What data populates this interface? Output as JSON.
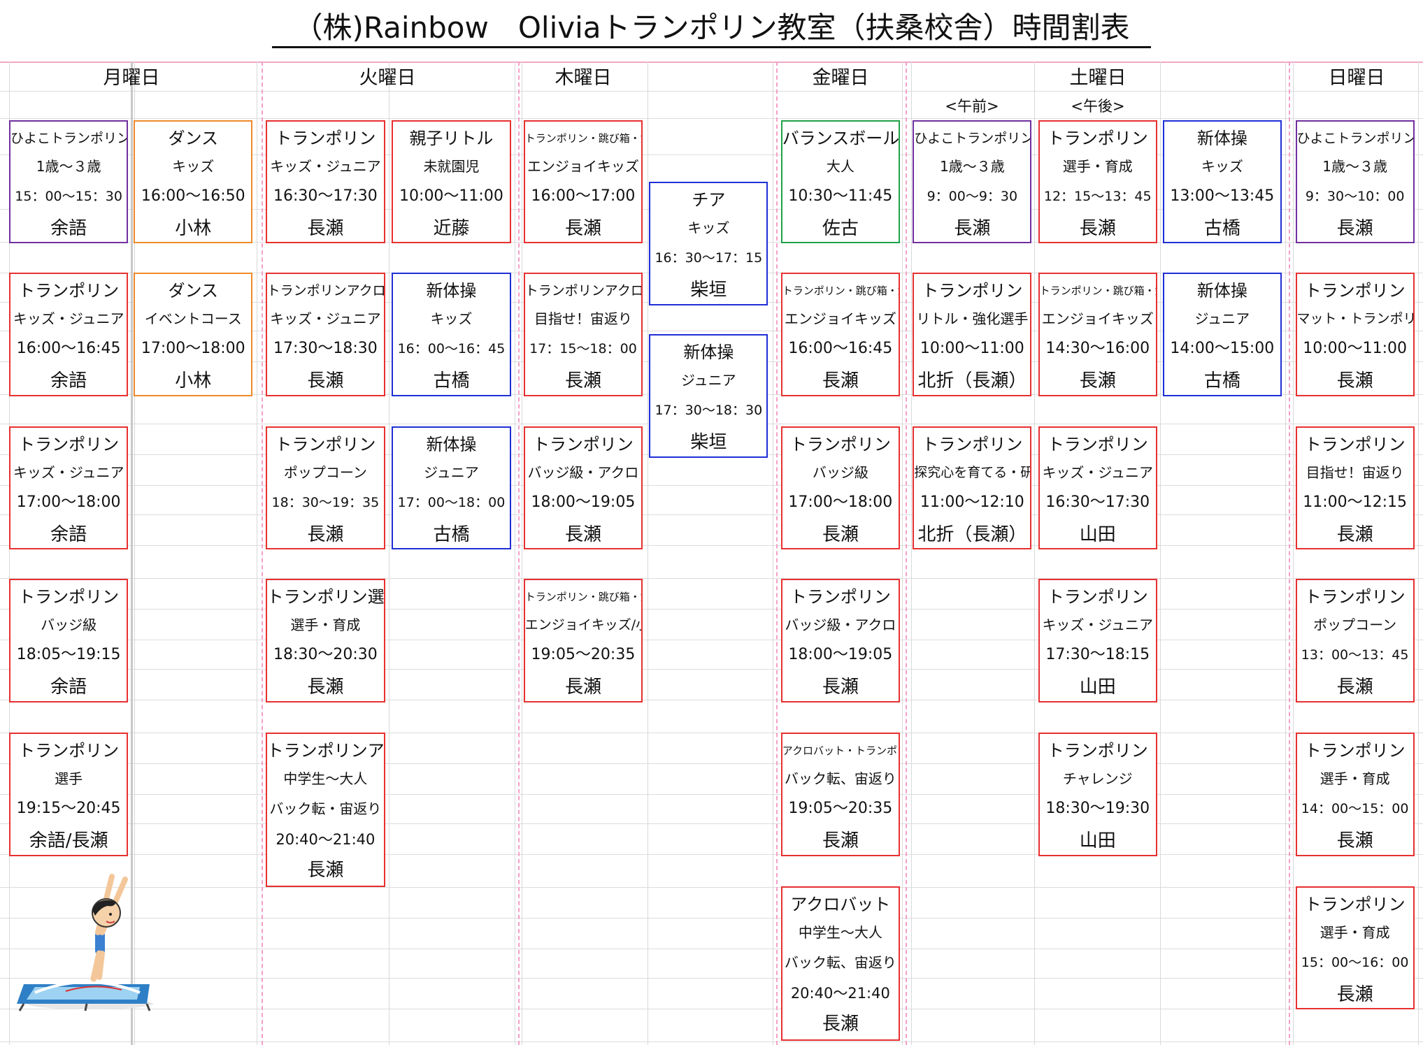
{
  "title": "（株)Rainbow　Oliviaトランポリン教室（扶桑校舎）時間割表",
  "days": [
    {
      "label": "月曜日"
    },
    {
      "label": "火曜日"
    },
    {
      "label": "木曜日"
    },
    {
      "label": "金曜日"
    },
    {
      "label": "土曜日"
    },
    {
      "label": "日曜日"
    }
  ],
  "subheaders": {
    "am": "<午前>",
    "pm": "<午後>"
  },
  "colors": {
    "red": "#e83030",
    "purple": "#7030a0",
    "orange": "#f08a2a",
    "blue": "#1f2fd6",
    "green": "#21a14a"
  },
  "cards": {
    "mon_1": {
      "name": "ひよこトランポリン",
      "level": "1歳～３歳",
      "time": "15：00～15：30",
      "coach": "余語"
    },
    "mon_2": {
      "name": "トランポリン",
      "level": "キッズ・ジュニア",
      "time": "16:00～16:45",
      "coach": "余語"
    },
    "mon_3": {
      "name": "トランポリン",
      "level": "キッズ・ジュニア",
      "time": "17:00～18:00",
      "coach": "余語"
    },
    "mon_4": {
      "name": "トランポリン",
      "level": "バッジ級",
      "time": "18:05～19:15",
      "coach": "余語"
    },
    "mon_5": {
      "name": "トランポリン",
      "level": "選手",
      "time": "19:15～20:45",
      "coach": "余語/長瀬"
    },
    "mon_d1": {
      "name": "ダンス",
      "level": "キッズ",
      "time": "16:00～16:50",
      "coach": "小林"
    },
    "mon_d2": {
      "name": "ダンス",
      "level": "イベントコース",
      "time": "17:00～18:00",
      "coach": "小林"
    },
    "tue_1": {
      "name": "トランポリン",
      "level": "キッズ・ジュニア",
      "time": "16:30～17:30",
      "coach": "長瀬"
    },
    "tue_2": {
      "name": "トランポリンアクロ",
      "level": "キッズ・ジュニア",
      "time": "17:30～18:30",
      "coach": "長瀬"
    },
    "tue_3": {
      "name": "トランポリン",
      "level": "ポップコーン",
      "time": "18：30～19：35",
      "coach": "長瀬"
    },
    "tue_4": {
      "name": "トランポリン選手",
      "level": "選手・育成",
      "time": "18:30～20:30",
      "coach": "長瀬"
    },
    "tue_5": {
      "name": "トランポリンアクロ",
      "level": "中学生～大人",
      "level2": "バック転・宙返り",
      "time": "20:40～21:40",
      "coach": "長瀬"
    },
    "tue_b1": {
      "name": "親子リトル",
      "level": "未就園児",
      "time": "10:00～11:00",
      "coach": "近藤"
    },
    "tue_b2": {
      "name": "新体操",
      "level": "キッズ",
      "time": "16：00～16：45",
      "coach": "古橋"
    },
    "tue_b3": {
      "name": "新体操",
      "level": "ジュニア",
      "time": "17：00～18：00",
      "coach": "古橋"
    },
    "thu_1": {
      "name": "トランポリン・跳び箱・鉄棒",
      "level": "エンジョイキッズ",
      "time": "16:00～17:00",
      "coach": "長瀬"
    },
    "thu_2": {
      "name": "トランポリンアクロ",
      "level": "目指せ！宙返り",
      "time": "17：15～18：00",
      "coach": "長瀬"
    },
    "thu_3": {
      "name": "トランポリン",
      "level": "バッジ級・アクロ",
      "time": "18:00～19:05",
      "coach": "長瀬"
    },
    "thu_4": {
      "name": "トランポリン・跳び箱・鉄棒",
      "level": "エンジョイキッズ/小学生",
      "time": "19:05～20:35",
      "coach": "長瀬"
    },
    "thu_b1": {
      "name": "チア",
      "level": "キッズ",
      "time": "16：30～17：15",
      "coach": "柴垣"
    },
    "thu_b2": {
      "name": "新体操",
      "level": "ジュニア",
      "time": "17：30～18：30",
      "coach": "柴垣"
    },
    "fri_1": {
      "name": "バランスボール",
      "level": "大人",
      "time": "10:30～11:45",
      "coach": "佐古"
    },
    "fri_2": {
      "name": "トランポリン・跳び箱・鉄棒",
      "level": "エンジョイキッズ",
      "time": "16:00～16:45",
      "coach": "長瀬"
    },
    "fri_3": {
      "name": "トランポリン",
      "level": "バッジ級",
      "time": "17:00～18:00",
      "coach": "長瀬"
    },
    "fri_4": {
      "name": "トランポリン",
      "level": "バッジ級・アクロ",
      "time": "18:00～19:05",
      "coach": "長瀬"
    },
    "fri_5": {
      "name": "アクロバット・トランポリン",
      "level": "バック転、宙返り",
      "time": "19:05～20:35",
      "coach": "長瀬"
    },
    "fri_6": {
      "name": "アクロバット",
      "level": "中学生～大人",
      "level2": "バック転、宙返り",
      "time": "20:40～21:40",
      "coach": "長瀬"
    },
    "sat_am1": {
      "name": "ひよこトランポリン",
      "level": "1歳～３歳",
      "time": "9：00～9：30",
      "coach": "長瀬"
    },
    "sat_am2": {
      "name": "トランポリン",
      "level": "リトル・強化選手",
      "time": "10:00～11:00",
      "coach": "北折（長瀬）"
    },
    "sat_am3": {
      "name": "トランポリン",
      "level": "探究心を育てる・研究",
      "time": "11:00～12:10",
      "coach": "北折（長瀬）"
    },
    "sat_pm1": {
      "name": "トランポリン",
      "level": "選手・育成",
      "time": "12：15～13：45",
      "coach": "長瀬"
    },
    "sat_pm2": {
      "name": "トランポリン・跳び箱・鉄棒",
      "level": "エンジョイキッズ",
      "time": "14:30～16:00",
      "coach": "長瀬"
    },
    "sat_pm3": {
      "name": "トランポリン",
      "level": "キッズ・ジュニア",
      "time": "16:30～17:30",
      "coach": "山田"
    },
    "sat_pm4": {
      "name": "トランポリン",
      "level": "キッズ・ジュニア",
      "time": "17:30～18:15",
      "coach": "山田"
    },
    "sat_pm5": {
      "name": "トランポリン",
      "level": "チャレンジ",
      "time": "18:30～19:30",
      "coach": "山田"
    },
    "sat_b1": {
      "name": "新体操",
      "level": "キッズ",
      "time": "13:00～13:45",
      "coach": "古橋"
    },
    "sat_b2": {
      "name": "新体操",
      "level": "ジュニア",
      "time": "14:00～15:00",
      "coach": "古橋"
    },
    "sun_1": {
      "name": "ひよこトランポリン",
      "level": "1歳～３歳",
      "time": "9：30～10：00",
      "coach": "長瀬"
    },
    "sun_2": {
      "name": "トランポリン",
      "level": "マット・トランポリン",
      "time": "10:00～11:00",
      "coach": "長瀬"
    },
    "sun_3": {
      "name": "トランポリン",
      "level": "目指せ！宙返り",
      "time": "11:00～12:15",
      "coach": "長瀬"
    },
    "sun_4": {
      "name": "トランポリン",
      "level": "ポップコーン",
      "time": "13：00～13：45",
      "coach": "長瀬"
    },
    "sun_5": {
      "name": "トランポリン",
      "level": "選手・育成",
      "time": "14：00～15：00",
      "coach": "長瀬"
    },
    "sun_6": {
      "name": "トランポリン",
      "level": "選手・育成",
      "time": "15：00～16：00",
      "coach": "長瀬"
    }
  }
}
